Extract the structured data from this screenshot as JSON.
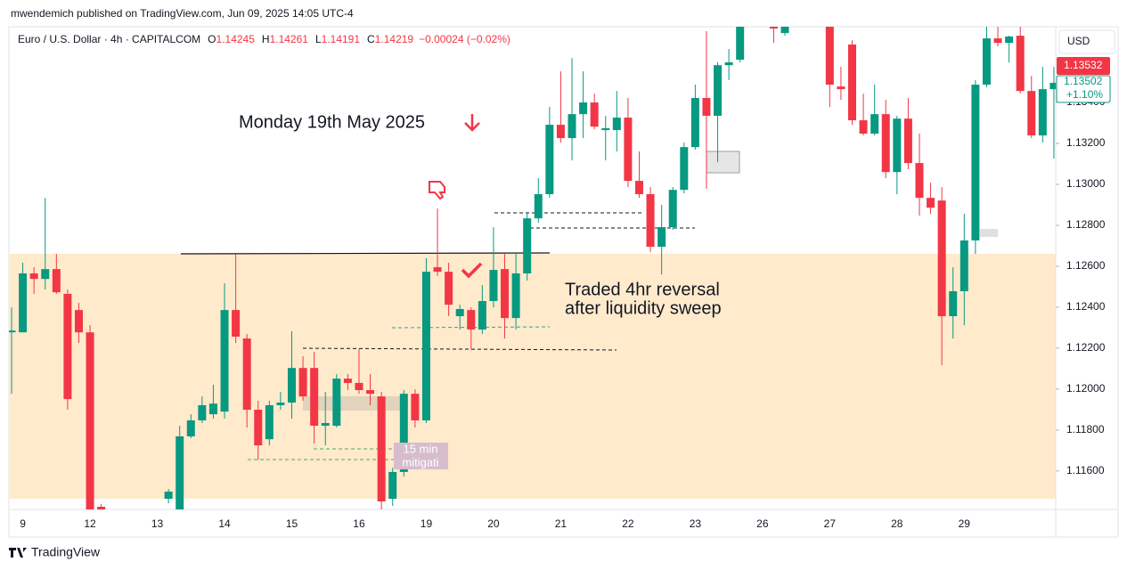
{
  "header": {
    "published": "mwendemich published on TradingView.com, Jun 09, 2025 14:05 UTC-4",
    "symbol": "Euro / U.S. Dollar · 4h · CAPITALCOM",
    "ohlc": [
      [
        "O",
        "1.14245"
      ],
      [
        "H",
        "1.14261"
      ],
      [
        "L",
        "1.14191"
      ],
      [
        "C",
        "1.14219"
      ]
    ],
    "change": "−0.00024 (−0.02%)"
  },
  "footer": "TradingView",
  "price_scale": {
    "currency": "USD",
    "last": "1.13532",
    "close": "1.13502",
    "change_pct": "+1.10%"
  },
  "annotations": [
    "Monday 19th May 2025",
    "Traded 4hr reversal",
    "after liquidity sweep",
    "15 min",
    "mitigati"
  ],
  "chart_data": {
    "type": "candlestick",
    "up_color": "#089981",
    "down_color": "#f23645",
    "grid": false,
    "ylim": [
      1.11412,
      1.1377
    ],
    "yticks": [
      {
        "value": 1.134,
        "label": "1.13400"
      },
      {
        "value": 1.132,
        "label": "1.13200"
      },
      {
        "value": 1.13,
        "label": "1.13000"
      },
      {
        "value": 1.128,
        "label": "1.12800"
      },
      {
        "value": 1.126,
        "label": "1.12600"
      },
      {
        "value": 1.124,
        "label": "1.12400"
      },
      {
        "value": 1.122,
        "label": "1.12200"
      },
      {
        "value": 1.12,
        "label": "1.12000"
      },
      {
        "value": 1.118,
        "label": "1.11800"
      },
      {
        "value": 1.116,
        "label": "1.11600"
      }
    ],
    "categories": [
      null,
      "9",
      null,
      null,
      null,
      null,
      null,
      "12",
      null,
      null,
      null,
      null,
      null,
      "13",
      null,
      null,
      null,
      null,
      null,
      "14",
      null,
      null,
      null,
      null,
      null,
      "15",
      null,
      null,
      null,
      null,
      null,
      "16",
      null,
      null,
      null,
      null,
      null,
      "19",
      null,
      null,
      null,
      null,
      null,
      "20",
      null,
      null,
      null,
      null,
      null,
      "21",
      null,
      null,
      null,
      null,
      null,
      "22",
      null,
      null,
      null,
      null,
      null,
      "23",
      null,
      null,
      null,
      null,
      null,
      "26",
      null,
      null,
      null,
      null,
      null,
      "27",
      null,
      null,
      null,
      null,
      null,
      "28",
      null,
      null,
      null,
      null,
      null,
      "29",
      null,
      null,
      null,
      null,
      null,
      null,
      null,
      null
    ],
    "open": [
      1.12277,
      1.12277,
      1.12565,
      1.12538,
      1.12586,
      1.12465,
      1.12386,
      1.12277,
      1.11425,
      null,
      null,
      null,
      null,
      null,
      1.11464,
      1.11399,
      1.11769,
      1.11847,
      1.11877,
      1.1189,
      1.12386,
      1.12247,
      1.11899,
      1.11755,
      1.11921,
      1.11934,
      1.12103,
      1.12103,
      1.11821,
      1.11821,
      1.12051,
      1.1203,
      1.11995,
      1.11964,
      1.11464,
      1.11595,
      1.11977,
      1.11847,
      1.12595,
      1.12573,
      1.12356,
      1.12386,
      1.12291,
      1.1243,
      1.12586,
      1.12347,
      1.12565,
      1.12834,
      1.12952,
      1.13291,
      1.13226,
      1.13343,
      1.134,
      1.13265,
      1.13265,
      1.13326,
      1.13017,
      1.12952,
      1.12695,
      1.12791,
      1.12973,
      1.13182,
      1.13422,
      1.13335,
      1.13582,
      1.13609,
      null,
      null,
      1.13778,
      1.13739,
      null,
      null,
      null,
      1.13778,
      1.13478,
      1.13683,
      1.13313,
      1.13248,
      1.13343,
      1.1306,
      1.13321,
      1.13104,
      1.12934,
      1.12921,
      1.12356,
      1.12478,
      1.12726,
      1.13487,
      1.13713,
      1.13691,
      1.13726,
      1.13456,
      1.13239,
      1.13465
    ],
    "high": [
      1.12399,
      1.12617,
      1.12595,
      1.12934,
      1.1266,
      1.12486,
      1.12421,
      1.12312,
      1.11438,
      null,
      null,
      null,
      null,
      null,
      1.11512,
      1.11821,
      1.11877,
      1.11964,
      1.12021,
      1.12517,
      1.1266,
      1.12269,
      1.11943,
      1.11943,
      1.11986,
      1.12282,
      1.1216,
      1.12182,
      1.11986,
      1.12073,
      1.12073,
      1.12195,
      1.12073,
      1.11986,
      1.11616,
      1.11995,
      1.11999,
      1.12639,
      1.12882,
      1.12617,
      1.12412,
      1.12399,
      1.12508,
      1.12791,
      1.1266,
      1.1266,
      1.12865,
      1.1303,
      1.13378,
      1.13552,
      1.13617,
      1.13552,
      1.13443,
      1.13335,
      1.13456,
      1.13422,
      1.13161,
      1.12987,
      1.129,
      1.12987,
      1.13204,
      1.13487,
      1.13748,
      1.13596,
      1.13661,
      1.13813,
      null,
      null,
      1.13791,
      1.13778,
      null,
      null,
      null,
      1.13791,
      1.13574,
      1.13704,
      1.13443,
      1.13487,
      1.13413,
      1.13335,
      1.13422,
      1.13248,
      1.13008,
      1.12987,
      1.12595,
      1.12856,
      1.13509,
      1.13778,
      1.13778,
      1.13726,
      1.13778,
      1.1353,
      1.13574,
      1.13574
    ],
    "low": [
      1.11977,
      1.12277,
      1.12465,
      1.12486,
      1.12465,
      1.11899,
      1.12225,
      1.11377,
      1.11399,
      null,
      null,
      null,
      null,
      null,
      1.11442,
      1.11399,
      1.1176,
      1.11834,
      1.11856,
      1.11856,
      1.12225,
      1.11812,
      1.11655,
      1.11725,
      1.11899,
      1.11856,
      1.11943,
      1.11734,
      1.11725,
      1.11812,
      1.11995,
      1.11977,
      1.11921,
      1.11412,
      1.11429,
      1.11573,
      1.11812,
      1.11834,
      1.12552,
      1.12356,
      1.12291,
      1.12195,
      1.12269,
      1.12399,
      1.12247,
      1.12291,
      1.1253,
      1.12813,
      1.12934,
      1.13204,
      1.13117,
      1.13226,
      1.13269,
      1.13117,
      1.13161,
      1.12987,
      1.12934,
      1.12669,
      1.1256,
      1.12778,
      1.12956,
      1.13169,
      1.12978,
      1.13108,
      1.13509,
      1.13596,
      null,
      null,
      1.13691,
      1.13726,
      null,
      null,
      null,
      1.13378,
      1.13413,
      1.13291,
      1.13239,
      1.13239,
      1.1303,
      1.12952,
      1.13074,
      1.12847,
      1.12856,
      1.12117,
      1.12247,
      1.12312,
      1.1266,
      1.13474,
      1.13674,
      1.13596,
      1.13443,
      1.13226,
      1.13204,
      1.13126
    ],
    "close": [
      1.12286,
      1.12565,
      1.12538,
      1.12586,
      1.12473,
      1.11951,
      1.12277,
      1.11399,
      1.11412,
      null,
      null,
      null,
      null,
      null,
      1.11499,
      1.11769,
      1.11847,
      1.11921,
      1.11929,
      1.12386,
      1.12256,
      1.11899,
      1.11725,
      1.11921,
      1.11934,
      1.12103,
      1.11964,
      1.11821,
      1.11834,
      1.12051,
      1.1203,
      1.11995,
      1.11977,
      1.11451,
      1.11595,
      1.11977,
      1.11847,
      1.12573,
      1.12573,
      1.12412,
      1.12391,
      1.12291,
      1.1243,
      1.12582,
      1.12347,
      1.12565,
      1.12834,
      1.12952,
      1.13291,
      1.13226,
      1.13343,
      1.134,
      1.13282,
      1.13274,
      1.13326,
      1.13017,
      1.12952,
      1.12695,
      1.12791,
      1.12973,
      1.13182,
      1.13422,
      1.13335,
      1.13582,
      1.13596,
      1.13778,
      null,
      null,
      1.13761,
      1.1377,
      null,
      null,
      null,
      1.13487,
      1.13465,
      1.13313,
      1.13248,
      1.13343,
      1.1306,
      1.13321,
      1.13104,
      1.12934,
      1.12886,
      1.12356,
      1.12478,
      1.12726,
      1.13487,
      1.13713,
      1.13691,
      1.13722,
      1.13456,
      1.13239,
      1.13465,
      1.13496
    ]
  }
}
